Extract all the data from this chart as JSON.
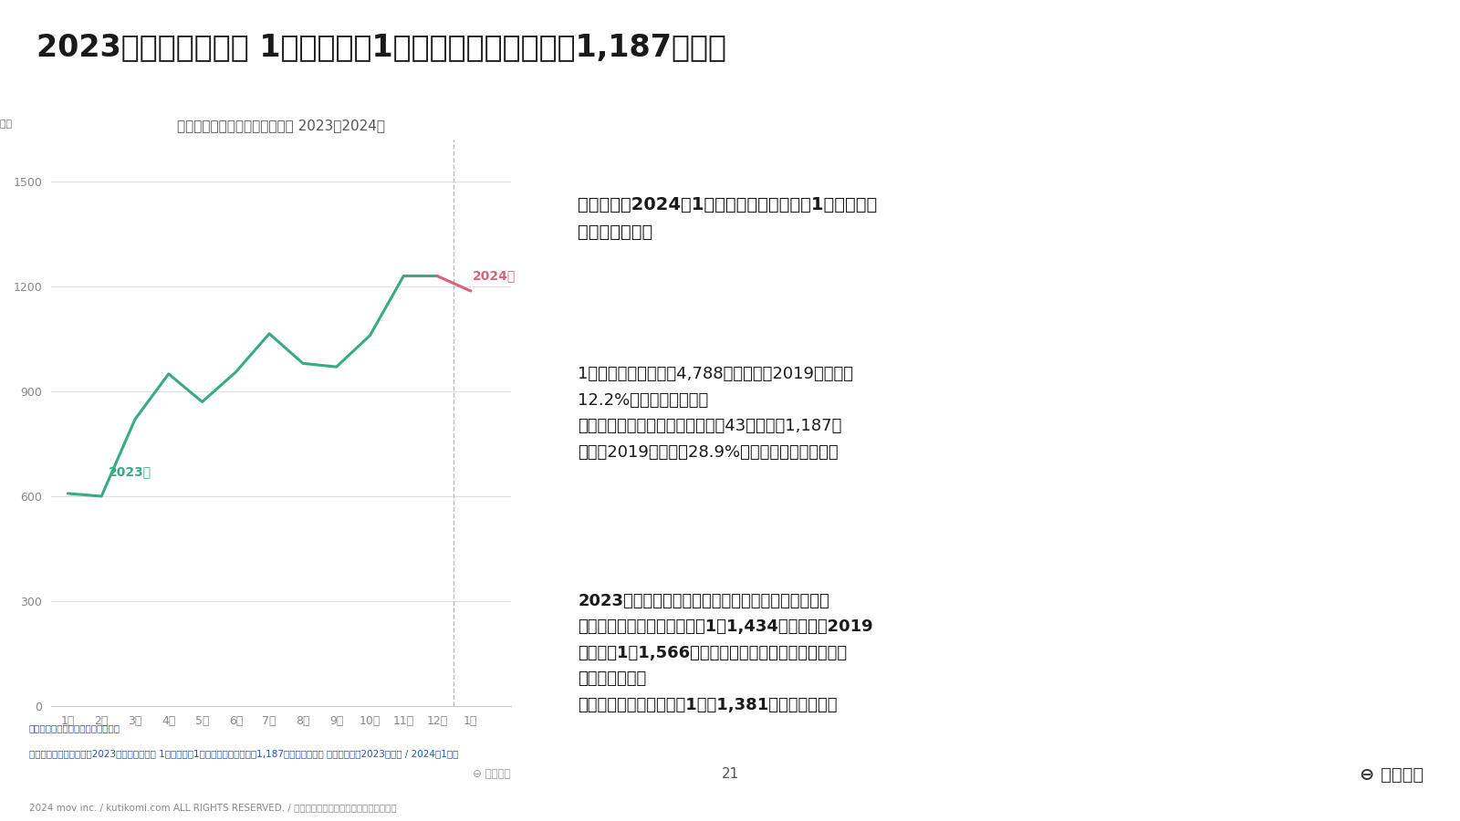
{
  "title": "2023年年間宿泊者数 1位は韓国　1月外国人宿泊数全体は1,187万人泊",
  "chart_title": "訪日外国人延べ宿泊者数の推移 2023～2024年",
  "y_unit": "（万人泊）",
  "x_labels": [
    "1月",
    "2月",
    "3月",
    "4月",
    "5月",
    "6月",
    "7月",
    "8月",
    "9月",
    "10月",
    "11月",
    "12月",
    "1月"
  ],
  "y_ticks": [
    0,
    300,
    600,
    900,
    1200,
    1500
  ],
  "line_2023": {
    "color": "#3aaa85",
    "label": "2023年",
    "values": [
      608,
      600,
      820,
      950,
      870,
      955,
      1065,
      980,
      970,
      1060,
      1230,
      1230,
      null
    ]
  },
  "line_2024": {
    "color": "#d9627a",
    "label": "2024年",
    "values": [
      null,
      null,
      null,
      null,
      null,
      null,
      null,
      null,
      null,
      null,
      null,
      1230,
      1187
    ]
  },
  "bg_color": "#ffffff",
  "right_panel_bg": "#efefef",
  "text_dark": "#222222",
  "text_gray": "#888888",
  "right_panel_texts": [
    "観光庁は、2024年1月の延べ宿泊者数（第1次速報）を\n公表しました。",
    "1月の延べ宿泊者数は4,788万人泊で、2019年同月比\n12.2%増となりました。\nまた、外国人宿泊者数は前月から43万人減の1,187万\n人泊（2019年同月比28.9%増）となっています。",
    "2023年年間の外国人延べ宿泊者数・国籍別延べ宿泊\n者数も発表され、宿泊者数は1億1,434万人泊と、2019\n年年間の1億1,566万人泊に迫る数値を記録したことが\nわかりました。\nまた、国籍別では韓国が1位で1,381万人泊でした。"
  ],
  "footer_ref1": "＜参照＞観光庁：宿泊旅行統計調査",
  "footer_ref2": "＜関連記事＞訪日ラボ：2023年年間宿泊者数 1位は韓国　1月外国人宿泊数全体は1,187万人泊【観光庁 宿泊旅行統計2023年年間 / 2024年1月】",
  "page_num": "21",
  "copyright": "2024 mov inc. / kutikomi.com ALL RIGHTS RESERVED. / 無断転載・二次利用を固く禁止します。",
  "logo_text": "⊖ 訪日ラボ",
  "chart_logo": "⊖ 訪日ラボ"
}
